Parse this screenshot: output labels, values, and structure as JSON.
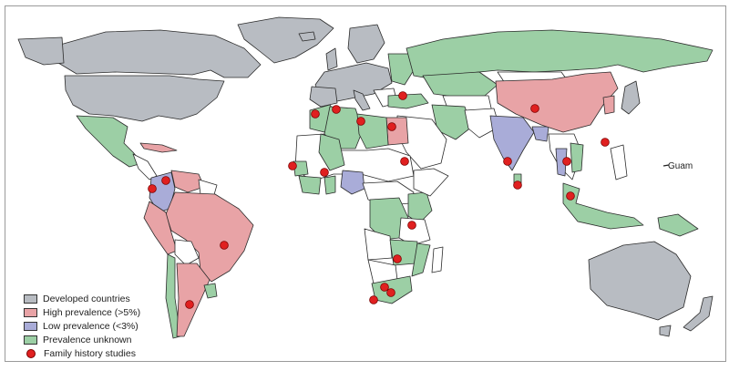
{
  "map": {
    "colors": {
      "developed": "#b8bcc2",
      "high": "#e8a3a6",
      "low": "#a9acd8",
      "unknown": "#9ccfa5",
      "none": "#ffffff",
      "dot": "#e02020"
    },
    "guam_label": "Guam"
  },
  "legend": {
    "items": [
      {
        "label": "Developed countries",
        "key": "developed"
      },
      {
        "label": "High prevalence (>5%)",
        "key": "high"
      },
      {
        "label": "Low prevalence (<3%)",
        "key": "low"
      },
      {
        "label": "Prevalence unknown",
        "key": "unknown"
      },
      {
        "label": "Family history studies",
        "key": "dot"
      }
    ]
  }
}
